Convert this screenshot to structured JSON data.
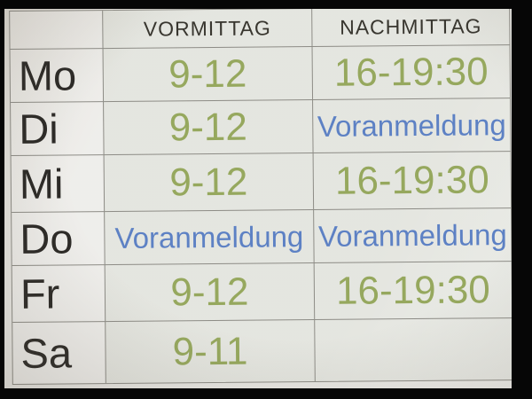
{
  "colors": {
    "time_green": "#96a85e",
    "prereg_blue": "#5d81c4",
    "day_black": "#2c2a27",
    "header_gray": "#38362f",
    "grid_line": "#8d8c86",
    "paper": "#e9e8e4"
  },
  "header": {
    "day_col": "",
    "morning": "VORMITTAG",
    "afternoon": "NACHMITTAG"
  },
  "rows": [
    {
      "day": "Mo",
      "morning": "9-12",
      "morning_type": "time",
      "afternoon": "16-19:30",
      "afternoon_type": "time"
    },
    {
      "day": "Di",
      "morning": "9-12",
      "morning_type": "time",
      "afternoon": "Voranmeldung",
      "afternoon_type": "prereg"
    },
    {
      "day": "Mi",
      "morning": "9-12",
      "morning_type": "time",
      "afternoon": "16-19:30",
      "afternoon_type": "time"
    },
    {
      "day": "Do",
      "morning": "Voranmeldung",
      "morning_type": "prereg",
      "afternoon": "Voranmeldung",
      "afternoon_type": "prereg"
    },
    {
      "day": "Fr",
      "morning": "9-12",
      "morning_type": "time",
      "afternoon": "16-19:30",
      "afternoon_type": "time"
    },
    {
      "day": "Sa",
      "morning": "9-11",
      "morning_type": "time",
      "afternoon": "",
      "afternoon_type": "empty"
    }
  ]
}
